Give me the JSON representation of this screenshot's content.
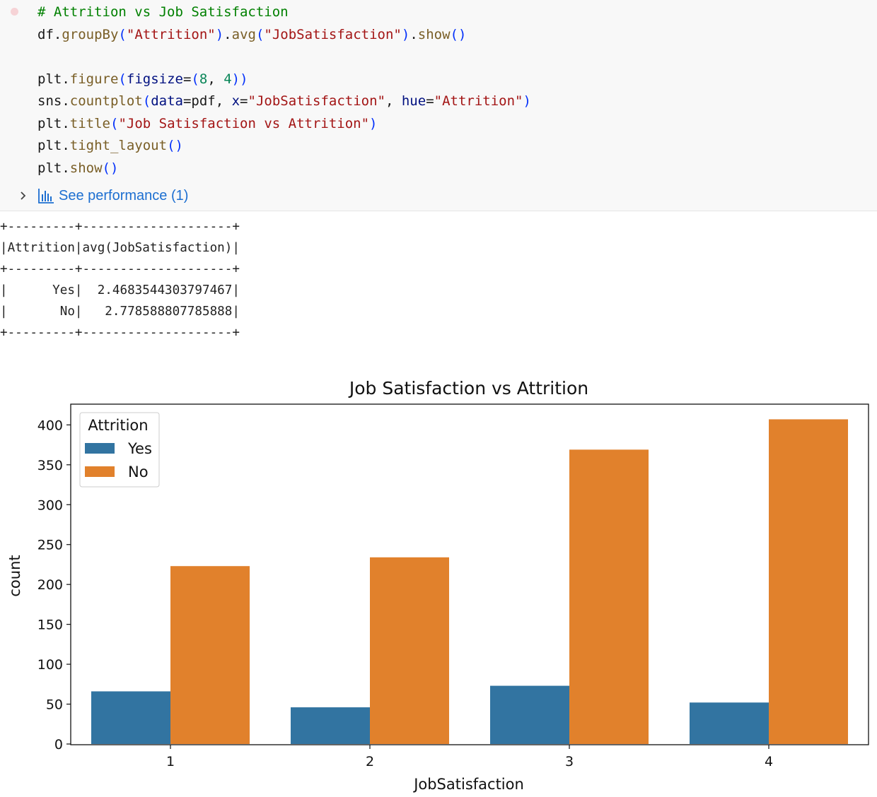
{
  "cell": {
    "status_color": "#f6d3d6",
    "lines": [
      [
        {
          "t": "# Attrition vs Job Satisfaction",
          "c": "comment"
        }
      ],
      [
        {
          "t": "df",
          "c": "op"
        },
        {
          "t": ".",
          "c": "op"
        },
        {
          "t": "groupBy",
          "c": "fn"
        },
        {
          "t": "(",
          "c": "paren"
        },
        {
          "t": "\"Attrition\"",
          "c": "str"
        },
        {
          "t": ")",
          "c": "paren"
        },
        {
          "t": ".",
          "c": "op"
        },
        {
          "t": "avg",
          "c": "fn"
        },
        {
          "t": "(",
          "c": "paren"
        },
        {
          "t": "\"JobSatisfaction\"",
          "c": "str"
        },
        {
          "t": ")",
          "c": "paren"
        },
        {
          "t": ".",
          "c": "op"
        },
        {
          "t": "show",
          "c": "fn"
        },
        {
          "t": "()",
          "c": "paren"
        }
      ],
      [],
      [
        {
          "t": "plt",
          "c": "op"
        },
        {
          "t": ".",
          "c": "op"
        },
        {
          "t": "figure",
          "c": "fn"
        },
        {
          "t": "(",
          "c": "paren"
        },
        {
          "t": "figsize",
          "c": "kw"
        },
        {
          "t": "=",
          "c": "op"
        },
        {
          "t": "(",
          "c": "paren"
        },
        {
          "t": "8",
          "c": "num"
        },
        {
          "t": ", ",
          "c": "op"
        },
        {
          "t": "4",
          "c": "num"
        },
        {
          "t": "))",
          "c": "paren"
        }
      ],
      [
        {
          "t": "sns",
          "c": "op"
        },
        {
          "t": ".",
          "c": "op"
        },
        {
          "t": "countplot",
          "c": "fn"
        },
        {
          "t": "(",
          "c": "paren"
        },
        {
          "t": "data",
          "c": "kw"
        },
        {
          "t": "=pdf, ",
          "c": "op"
        },
        {
          "t": "x",
          "c": "kw"
        },
        {
          "t": "=",
          "c": "op"
        },
        {
          "t": "\"JobSatisfaction\"",
          "c": "str"
        },
        {
          "t": ", ",
          "c": "op"
        },
        {
          "t": "hue",
          "c": "kw"
        },
        {
          "t": "=",
          "c": "op"
        },
        {
          "t": "\"Attrition\"",
          "c": "str"
        },
        {
          "t": ")",
          "c": "paren"
        }
      ],
      [
        {
          "t": "plt",
          "c": "op"
        },
        {
          "t": ".",
          "c": "op"
        },
        {
          "t": "title",
          "c": "fn"
        },
        {
          "t": "(",
          "c": "paren"
        },
        {
          "t": "\"Job Satisfaction vs Attrition\"",
          "c": "str"
        },
        {
          "t": ")",
          "c": "paren"
        }
      ],
      [
        {
          "t": "plt",
          "c": "op"
        },
        {
          "t": ".",
          "c": "op"
        },
        {
          "t": "tight_layout",
          "c": "fn"
        },
        {
          "t": "()",
          "c": "paren"
        }
      ],
      [
        {
          "t": "plt",
          "c": "op"
        },
        {
          "t": ".",
          "c": "op"
        },
        {
          "t": "show",
          "c": "fn"
        },
        {
          "t": "()",
          "c": "paren"
        }
      ]
    ],
    "perf_label": "See performance (1)",
    "chevron_icon": "chevron-right-icon",
    "perf_icon": "bar-chart-icon"
  },
  "output": {
    "text": "+---------+--------------------+\n|Attrition|avg(JobSatisfaction)|\n+---------+--------------------+\n|      Yes|  2.4683544303797467|\n|       No|   2.778588807785888|\n+---------+--------------------+"
  },
  "chart_data": {
    "type": "bar",
    "title": "Job Satisfaction vs Attrition",
    "xlabel": "JobSatisfaction",
    "ylabel": "count",
    "categories": [
      "1",
      "2",
      "3",
      "4"
    ],
    "series": [
      {
        "name": "Yes",
        "values": [
          66,
          46,
          73,
          52
        ],
        "color": "#3274a1"
      },
      {
        "name": "No",
        "values": [
          223,
          234,
          369,
          407
        ],
        "color": "#e1812c"
      }
    ],
    "ylim": [
      0,
      426
    ],
    "yticks": [
      0,
      50,
      100,
      150,
      200,
      250,
      300,
      350,
      400
    ],
    "legend": {
      "title": "Attrition",
      "placement": "top-left"
    },
    "grid": false
  }
}
